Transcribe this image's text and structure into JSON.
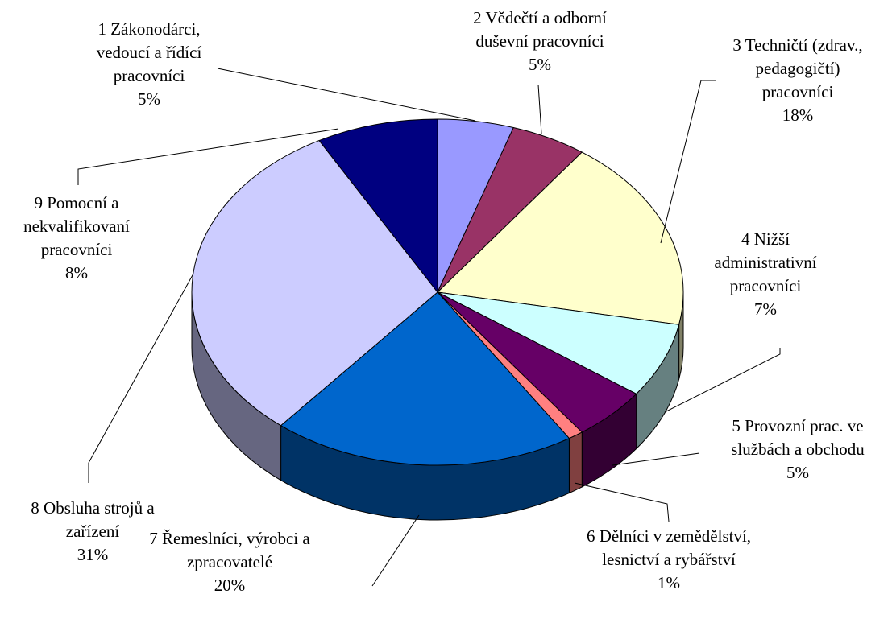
{
  "chart_data": {
    "type": "pie",
    "categories": [
      "1 Zákonodárci, vedoucí a řídící pracovníci",
      "2 Vědečtí a odborní duševní pracovníci",
      "3 Techničtí (zdrav., pedagogičtí) pracovníci",
      "4 Nižší administrativní pracovníci",
      "5 Provozní prac. ve službách a obchodu",
      "6 Dělníci v zemědělství, lesnictví a rybářství",
      "7 Řemeslníci, výrobci a zpracovatelé",
      "8 Obsluha strojů a zařízení",
      "9 Pomocní a nekvalifikovaní pracovníci"
    ],
    "values": [
      5,
      5,
      18,
      7,
      5,
      1,
      20,
      31,
      8
    ],
    "value_labels": [
      "5%",
      "5%",
      "18%",
      "7%",
      "5%",
      "1%",
      "20%",
      "31%",
      "8%"
    ],
    "colors": [
      "#9999ff",
      "#993366",
      "#ffffcc",
      "#ccffff",
      "#660066",
      "#ff8080",
      "#0066cc",
      "#ccccff",
      "#000080"
    ]
  }
}
